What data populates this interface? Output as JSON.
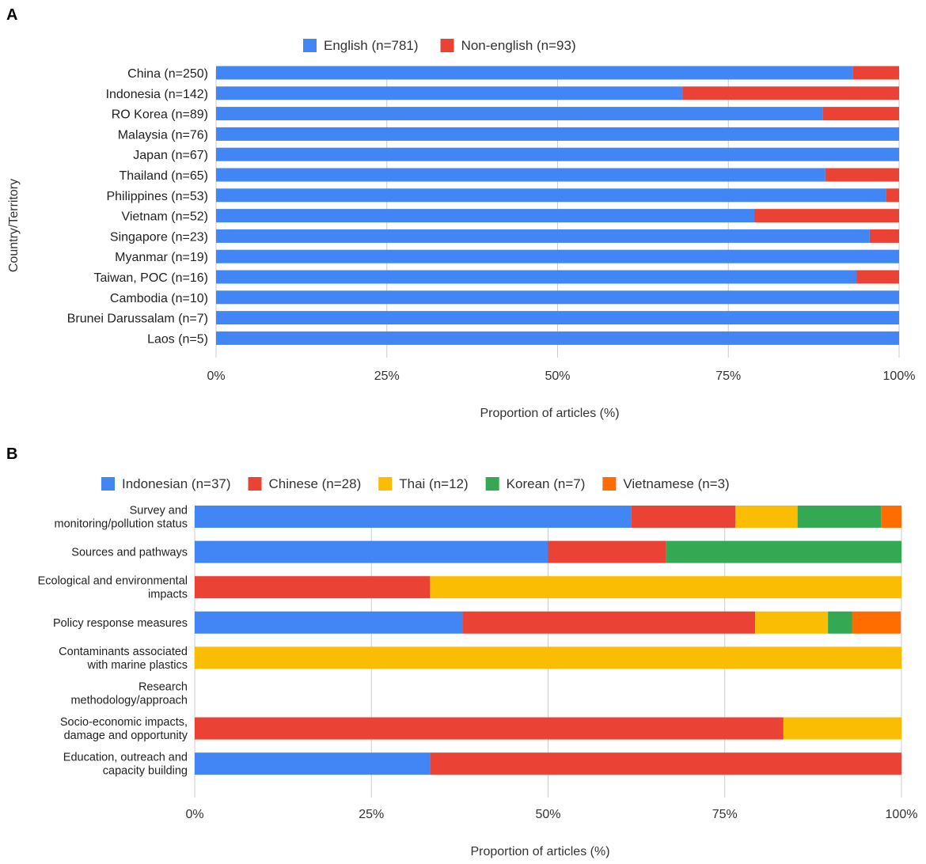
{
  "colors": {
    "blue": "#4285f4",
    "red": "#ea4335",
    "yellow": "#fbbc04",
    "green": "#34a853",
    "orange": "#ff6d01",
    "grid": "#cccccc"
  },
  "chart_data": [
    {
      "panel": "A",
      "type": "bar",
      "orientation": "horizontal",
      "stacked": "percent",
      "title": "",
      "xlabel": "Proportion of articles (%)",
      "ylabel": "Country/Territory",
      "xlim": [
        0,
        100
      ],
      "xticks": [
        "0%",
        "25%",
        "50%",
        "75%",
        "100%"
      ],
      "legend_position": "top",
      "categories": [
        "China (n=250)",
        "Indonesia (n=142)",
        "RO Korea (n=89)",
        "Malaysia (n=76)",
        "Japan (n=67)",
        "Thailand (n=65)",
        "Philippines (n=53)",
        "Vietnam (n=52)",
        "Singapore (n=23)",
        "Myanmar (n=19)",
        "Taiwan, POC (n=16)",
        "Cambodia (n=10)",
        "Brunei Darussalam (n=7)",
        "Laos (n=5)"
      ],
      "series": [
        {
          "name": "English (n=781)",
          "color": "#4285f4",
          "values": [
            93.2,
            68.3,
            88.8,
            100,
            100,
            89.2,
            98.1,
            78.8,
            95.7,
            100,
            93.8,
            100,
            100,
            100
          ]
        },
        {
          "name": "Non-english (n=93)",
          "color": "#ea4335",
          "values": [
            6.8,
            31.7,
            11.2,
            0,
            0,
            10.8,
            1.9,
            21.2,
            4.3,
            0,
            6.2,
            0,
            0,
            0
          ]
        }
      ]
    },
    {
      "panel": "B",
      "type": "bar",
      "orientation": "horizontal",
      "stacked": "percent",
      "title": "",
      "xlabel": "Proportion of articles (%)",
      "ylabel": "",
      "xlim": [
        0,
        100
      ],
      "xticks": [
        "0%",
        "25%",
        "50%",
        "75%",
        "100%"
      ],
      "legend_position": "top",
      "categories": [
        [
          "Survey and",
          "monitoring/pollution status"
        ],
        [
          "Sources and pathways"
        ],
        [
          "Ecological and environmental",
          "impacts"
        ],
        [
          "Policy response measures"
        ],
        [
          "Contaminants associated",
          "with marine plastics"
        ],
        [
          "Research",
          "methodology/approach"
        ],
        [
          "Socio-economic impacts,",
          "damage and opportunity"
        ],
        [
          "Education, outreach and",
          "capacity building"
        ]
      ],
      "series": [
        {
          "name": "Indonesian (n=37)",
          "color": "#4285f4",
          "values": [
            61.8,
            50.0,
            0,
            37.9,
            0,
            0,
            0,
            33.3
          ]
        },
        {
          "name": "Chinese (n=28)",
          "color": "#ea4335",
          "values": [
            14.7,
            16.7,
            33.3,
            41.4,
            0,
            0,
            83.3,
            66.7
          ]
        },
        {
          "name": "Thai (n=12)",
          "color": "#fbbc04",
          "values": [
            8.8,
            0,
            66.7,
            10.3,
            100,
            0,
            16.7,
            0
          ]
        },
        {
          "name": "Korean (n=7)",
          "color": "#34a853",
          "values": [
            11.8,
            33.3,
            0,
            3.4,
            0,
            0,
            0,
            0
          ]
        },
        {
          "name": "Vietnamese (n=3)",
          "color": "#ff6d01",
          "values": [
            2.9,
            0,
            0,
            6.9,
            0,
            0,
            0,
            0
          ]
        }
      ]
    }
  ]
}
